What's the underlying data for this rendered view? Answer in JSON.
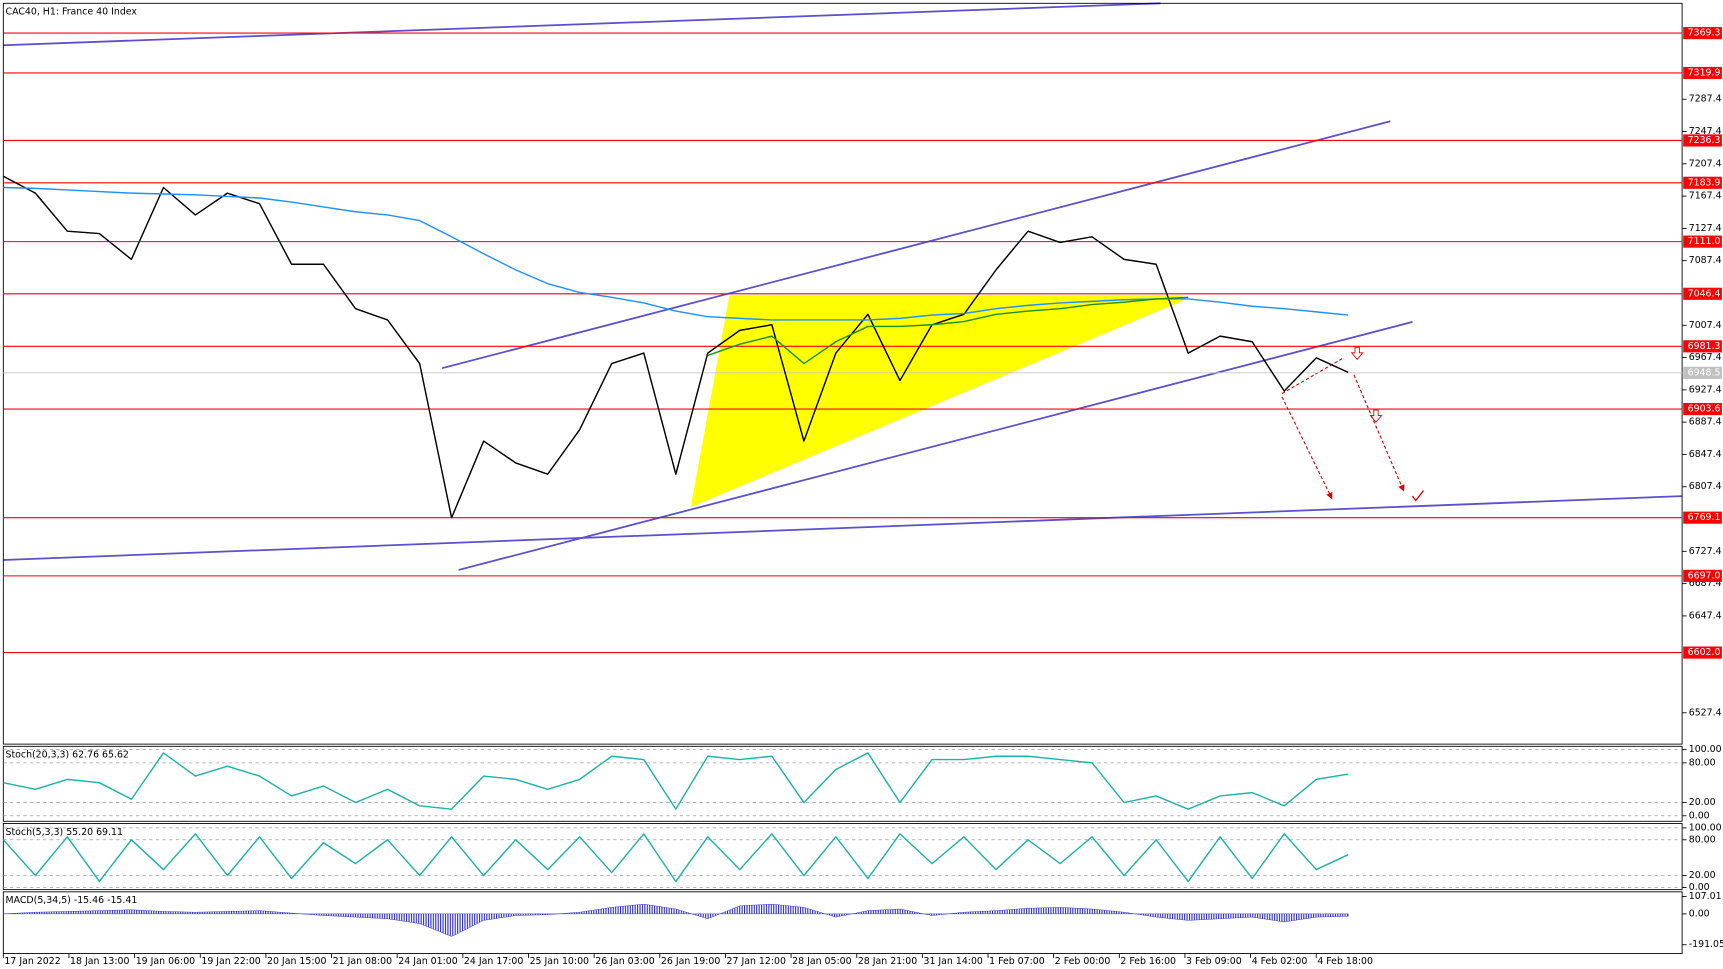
{
  "chart_data": [
    {
      "type": "line",
      "title": "CAC40, H1:  France 40 Index",
      "x": [
        0,
        8,
        16,
        24,
        32,
        40,
        48,
        56,
        64,
        72,
        80,
        88,
        96,
        104,
        112,
        120,
        128,
        136,
        144,
        152,
        160,
        168,
        176,
        184,
        192,
        200,
        208,
        216,
        224,
        232,
        240,
        248,
        256,
        264,
        272,
        280,
        288,
        296,
        304,
        312,
        320,
        328,
        336
      ],
      "xlim": [
        0,
        419.4
      ],
      "ylim": [
        6488.6,
        7406.2
      ],
      "grid": false,
      "yticks": [
        7287.4,
        7247.4,
        7207.4,
        7167.4,
        7127.4,
        7087.4,
        7007.4,
        6967.4,
        6927.4,
        6887.4,
        6847.4,
        6807.4,
        6727.4,
        6687.4,
        6647.4,
        6527.4
      ],
      "levels": [
        7369.3,
        7319.9,
        7236.3,
        7183.9,
        {
          "value": 7111.0,
          "label": "7111.0"
        },
        7046.4,
        6981.3,
        6903.6,
        6769.1,
        {
          "value": 6697.0,
          "label": "6697.0"
        },
        {
          "value": 6602.0,
          "label": "6602.0"
        }
      ],
      "level_color": "#ff0000",
      "current_price": 6948.5,
      "series": [
        {
          "color": "#000000",
          "values": [
            7192,
            7171,
            7124,
            7121,
            7089,
            7178,
            7144,
            7171,
            7158,
            7083,
            7083,
            7028,
            7014,
            6960,
            6769,
            6864,
            6837,
            6823,
            6878,
            6960,
            6973,
            6823,
            6973,
            7001,
            7008,
            6864,
            6973,
            7021,
            6939,
            7008,
            7021,
            7076,
            7124,
            7110,
            7117,
            7089,
            7083,
            6973,
            6994,
            6987,
            6926,
            6967,
            6949
          ]
        },
        {
          "color": "#1e90ff",
          "values": [
            7178,
            7177,
            7175,
            7173,
            7171,
            7170,
            7169,
            7167,
            7165,
            7160,
            7154,
            7148,
            7144,
            7137,
            7117,
            7096,
            7076,
            7059,
            7048,
            7042,
            7035,
            7025,
            7018,
            7016,
            7014,
            7014,
            7014,
            7014,
            7016,
            7020,
            7022,
            7028,
            7032,
            7035,
            7037,
            7039,
            7040,
            7040,
            7036,
            7031,
            7028,
            7024,
            7020
          ]
        },
        {
          "color": "#1f8f1f",
          "values": [
            null,
            null,
            null,
            null,
            null,
            null,
            null,
            null,
            null,
            null,
            null,
            null,
            null,
            null,
            null,
            null,
            null,
            null,
            null,
            null,
            null,
            null,
            6970,
            6984,
            6994,
            6960,
            6987,
            7006,
            7006,
            7008,
            7012,
            7021,
            7025,
            7028,
            7033,
            7036,
            7040,
            7042,
            null,
            null,
            null,
            null,
            null
          ]
        }
      ]
    },
    {
      "type": "line",
      "title": "Stoch(20,3,3) 62.76 65.62",
      "x": [
        0,
        8,
        16,
        24,
        32,
        40,
        48,
        56,
        64,
        72,
        80,
        88,
        96,
        104,
        112,
        120,
        128,
        136,
        144,
        152,
        160,
        168,
        176,
        184,
        192,
        200,
        208,
        216,
        224,
        232,
        240,
        248,
        256,
        264,
        272,
        280,
        288,
        296,
        304,
        312,
        320,
        328,
        336
      ],
      "xlim": [
        0,
        419.4
      ],
      "ylim": [
        -8.3,
        105
      ],
      "grid": true,
      "yticks": [
        {
          "value": 100,
          "label": "100.00"
        },
        {
          "value": 80,
          "label": "80.00"
        },
        {
          "value": 20,
          "label": "20.00"
        },
        {
          "value": 0,
          "label": "0.00"
        }
      ],
      "series": [
        {
          "color": "#20b2aa",
          "values": [
            50,
            40,
            55,
            50,
            25,
            95,
            60,
            75,
            60,
            30,
            45,
            20,
            40,
            15,
            10,
            60,
            55,
            40,
            55,
            90,
            85,
            10,
            90,
            85,
            90,
            20,
            70,
            95,
            20,
            85,
            85,
            90,
            90,
            85,
            80,
            20,
            30,
            10,
            30,
            35,
            15,
            55,
            63
          ]
        }
      ]
    },
    {
      "type": "line",
      "title": "Stoch(5,3,3) 55.20 69.11",
      "x": [
        0,
        8,
        16,
        24,
        32,
        40,
        48,
        56,
        64,
        72,
        80,
        88,
        96,
        104,
        112,
        120,
        128,
        136,
        144,
        152,
        160,
        168,
        176,
        184,
        192,
        200,
        208,
        216,
        224,
        232,
        240,
        248,
        256,
        264,
        272,
        280,
        288,
        296,
        304,
        312,
        320,
        328,
        336
      ],
      "xlim": [
        0,
        419.4
      ],
      "ylim": [
        -3.7,
        107.4
      ],
      "grid": true,
      "yticks": [
        {
          "value": 100,
          "label": "100.00"
        },
        {
          "value": 80,
          "label": "80.00"
        },
        {
          "value": 20,
          "label": "20.00"
        },
        {
          "value": 0,
          "label": "0.00"
        }
      ],
      "series": [
        {
          "color": "#20b2aa",
          "values": [
            80,
            20,
            85,
            10,
            80,
            30,
            90,
            20,
            85,
            15,
            75,
            40,
            80,
            20,
            85,
            20,
            80,
            30,
            85,
            25,
            90,
            10,
            85,
            30,
            90,
            20,
            85,
            15,
            90,
            40,
            85,
            30,
            80,
            40,
            85,
            20,
            80,
            10,
            85,
            15,
            90,
            30,
            55
          ]
        }
      ]
    },
    {
      "type": "bar",
      "title": "MACD(5,34,5) -15.46 -15.41",
      "x": [
        0,
        8,
        16,
        24,
        32,
        40,
        48,
        56,
        64,
        72,
        80,
        88,
        96,
        104,
        112,
        120,
        128,
        136,
        144,
        152,
        160,
        168,
        176,
        184,
        192,
        200,
        208,
        216,
        224,
        232,
        240,
        248,
        256,
        264,
        272,
        280,
        288,
        296,
        304,
        312,
        320,
        328,
        336
      ],
      "xlim": [
        0,
        419.4
      ],
      "ylim": [
        -245.6,
        136.4
      ],
      "grid": false,
      "color": "#2a2ad0",
      "yticks": [
        107.01,
        {
          "value": 0,
          "label": "0.00"
        },
        -191.05
      ],
      "values": [
        0,
        10,
        15,
        20,
        25,
        15,
        10,
        15,
        20,
        5,
        -10,
        -20,
        -30,
        -60,
        -140,
        -40,
        -10,
        -5,
        10,
        40,
        60,
        30,
        -30,
        50,
        60,
        40,
        -20,
        20,
        30,
        -10,
        10,
        20,
        35,
        40,
        30,
        10,
        -20,
        -40,
        -30,
        -20,
        -50,
        -20,
        -15
      ],
      "xticks": [
        {
          "value": 0,
          "label": "17 Jan 2022"
        },
        {
          "value": 16.4,
          "label": "18 Jan 13:00"
        },
        {
          "value": 32.8,
          "label": "19 Jan 06:00"
        },
        {
          "value": 49.2,
          "label": "19 Jan 22:00"
        },
        {
          "value": 65.6,
          "label": "20 Jan 15:00"
        },
        {
          "value": 82,
          "label": "21 Jan 08:00"
        },
        {
          "value": 98.4,
          "label": "24 Jan 01:00"
        },
        {
          "value": 114.8,
          "label": "24 Jan 17:00"
        },
        {
          "value": 131.2,
          "label": "25 Jan 10:00"
        },
        {
          "value": 147.6,
          "label": "26 Jan 03:00"
        },
        {
          "value": 164,
          "label": "26 Jan 19:00"
        },
        {
          "value": 180.4,
          "label": "27 Jan 12:00"
        },
        {
          "value": 196.8,
          "label": "28 Jan 05:00"
        },
        {
          "value": 213.2,
          "label": "28 Jan 21:00"
        },
        {
          "value": 229.6,
          "label": "31 Jan 14:00"
        },
        {
          "value": 246,
          "label": "1 Feb 07:00"
        },
        {
          "value": 262.4,
          "label": "2 Feb 00:00"
        },
        {
          "value": 278.8,
          "label": "2 Feb 16:00"
        },
        {
          "value": 295.2,
          "label": "3 Feb 09:00"
        },
        {
          "value": 311.6,
          "label": "4 Feb 02:00"
        },
        {
          "value": 328,
          "label": "4 Feb 18:00"
        }
      ]
    }
  ]
}
